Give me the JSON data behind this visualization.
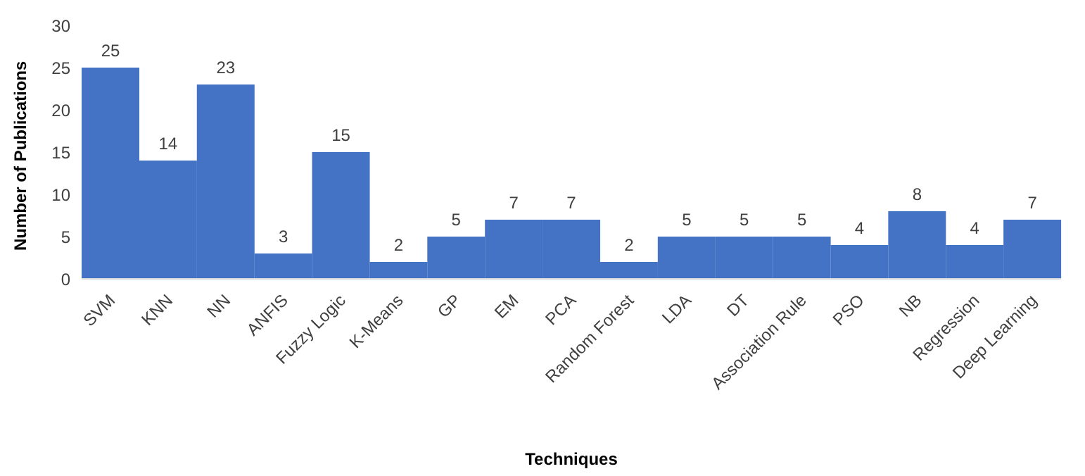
{
  "chart_data": {
    "type": "bar",
    "xlabel": "Techniques",
    "ylabel": "Number of Publications",
    "categories": [
      "SVM",
      "KNN",
      "NN",
      "ANFIS",
      "Fuzzy Logic",
      "K-Means",
      "GP",
      "EM",
      "PCA",
      "Random Forest",
      "LDA",
      "DT",
      "Association Rule",
      "PSO",
      "NB",
      "Regression",
      "Deep Learning"
    ],
    "values": [
      25,
      14,
      23,
      3,
      15,
      2,
      5,
      7,
      7,
      2,
      5,
      5,
      5,
      4,
      8,
      4,
      7
    ],
    "data_labels": true,
    "color": "#4472c4",
    "ylim": [
      0,
      30
    ],
    "yticks": [
      0,
      5,
      10,
      15,
      20,
      25,
      30
    ],
    "grid": false
  }
}
